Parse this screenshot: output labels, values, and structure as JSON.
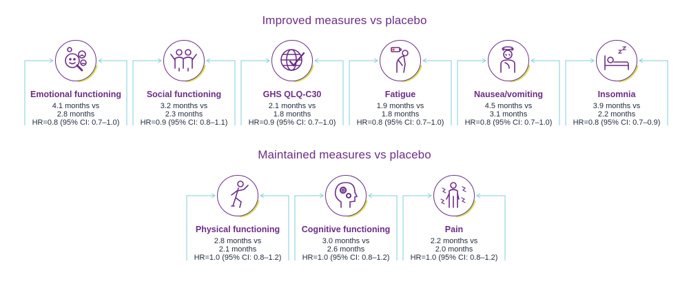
{
  "sections": [
    {
      "title": "Improved measures vs placebo",
      "cards": [
        {
          "title": "Emotional functioning",
          "line1": "4.1 months vs",
          "line2": "2.8 months",
          "line3": "HR=0.8 (95% CI: 0.7–1.0)",
          "icon": "emotions-magnifier-icon"
        },
        {
          "title": "Social functioning",
          "line1": "3.2 months vs",
          "line2": "2.3 months",
          "line3": "HR=0.9 (95% CI: 0.8–1.1)",
          "icon": "people-group-icon"
        },
        {
          "title": "GHS QLQ-C30",
          "line1": "2.1 months vs",
          "line2": "1.8 months",
          "line3": "HR=0.9 (95% CI: 0.7–1.0)",
          "icon": "globe-check-icon"
        },
        {
          "title": "Fatigue",
          "line1": "1.9 months vs",
          "line2": "1.8 months",
          "line3": "HR=0.8 (95% CI: 0.7–1.0)",
          "icon": "tired-person-battery-icon"
        },
        {
          "title": "Nausea/vomiting",
          "line1": "4.5 months vs",
          "line2": "3.1 months",
          "line3": "HR=0.8 (95% CI: 0.7–1.0)",
          "icon": "nauseous-person-icon"
        },
        {
          "title": "Insomnia",
          "line1": "3.9 months vs",
          "line2": "2.2 months",
          "line3": "HR=0.8 (95% CI: 0.7–0.9)",
          "icon": "bed-sleep-icon"
        }
      ]
    },
    {
      "title": "Maintained measures vs placebo",
      "cards": [
        {
          "title": "Physical functioning",
          "line1": "2.8 months vs",
          "line2": "2.1 months",
          "line3": "HR=1.0 (95% CI: 0.8–1.2)",
          "icon": "running-person-icon"
        },
        {
          "title": "Cognitive functioning",
          "line1": "3.0 months vs",
          "line2": "2.6 months",
          "line3": "HR=1.0 (95% CI: 0.8–1.2)",
          "icon": "head-gears-icon"
        },
        {
          "title": "Pain",
          "line1": "2.2 months vs",
          "line2": "2.0 months",
          "line3": "HR=1.0 (95% CI: 0.8–1.2)",
          "icon": "person-in-pain-icon"
        }
      ]
    }
  ],
  "colors": {
    "purple": "#6b2d86",
    "teal": "#7ecfd9",
    "lime": "#d6e25a",
    "text": "#222c3d"
  }
}
